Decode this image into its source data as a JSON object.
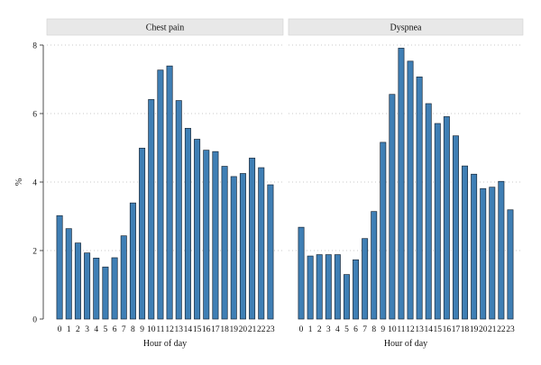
{
  "chart_data": {
    "type": "bar",
    "ylabel": "%",
    "ylim": [
      0,
      8
    ],
    "yticks": [
      0,
      2,
      4,
      6,
      8
    ],
    "grid": true,
    "bar_color": "#3f7fb5",
    "categories": [
      "0",
      "1",
      "2",
      "3",
      "4",
      "5",
      "6",
      "7",
      "8",
      "9",
      "10",
      "11",
      "12",
      "13",
      "14",
      "15",
      "16",
      "17",
      "18",
      "19",
      "20",
      "21",
      "22",
      "23"
    ],
    "panels": [
      {
        "title": "Chest pain",
        "xlabel": "Hour of day",
        "values": [
          3.02,
          2.64,
          2.22,
          1.93,
          1.78,
          1.52,
          1.79,
          2.43,
          3.39,
          4.99,
          6.41,
          7.27,
          7.39,
          6.38,
          5.57,
          5.25,
          4.93,
          4.89,
          4.46,
          4.16,
          4.25,
          4.7,
          4.42,
          3.92
        ]
      },
      {
        "title": "Dyspnea",
        "xlabel": "Hour of day",
        "values": [
          2.68,
          1.84,
          1.88,
          1.88,
          1.88,
          1.3,
          1.73,
          2.35,
          3.14,
          5.16,
          6.56,
          7.91,
          7.53,
          7.07,
          6.29,
          5.71,
          5.91,
          5.35,
          4.47,
          4.23,
          3.81,
          3.85,
          4.02,
          3.19
        ]
      }
    ]
  }
}
